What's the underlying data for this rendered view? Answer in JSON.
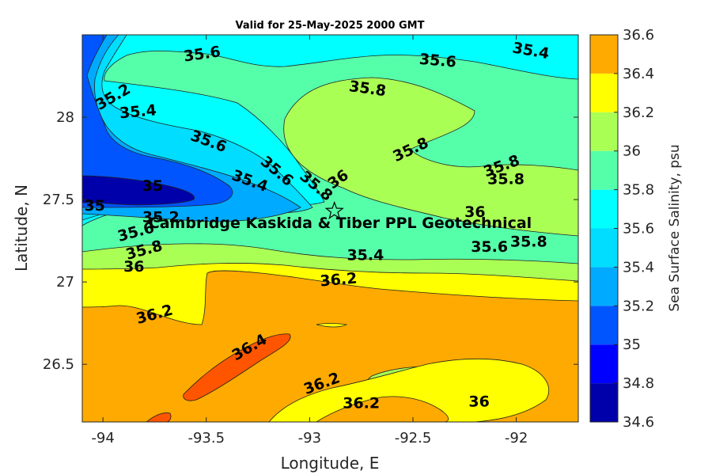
{
  "chart_data": {
    "type": "heatmap",
    "title": "Valid for 25-May-2025 2000 GMT",
    "xlabel": "Longitude, E",
    "ylabel": "Latitude, N",
    "xlim": [
      -94.1,
      -91.7
    ],
    "ylim": [
      26.15,
      28.5
    ],
    "x_ticks": [
      -94,
      -93.5,
      -93,
      -92.5,
      -92
    ],
    "x_tick_labels": [
      "-94",
      "-93.5",
      "-93",
      "-92.5",
      "-92"
    ],
    "y_ticks": [
      26.5,
      27,
      27.5,
      28
    ],
    "y_tick_labels": [
      "26.5",
      "27",
      "27.5",
      "28"
    ],
    "colorbar": {
      "label": "Sea Surface Salinity, psu",
      "levels": [
        34.6,
        34.8,
        35,
        35.2,
        35.4,
        35.6,
        35.8,
        36,
        36.2,
        36.4,
        36.6
      ],
      "tick_labels": [
        "34.6",
        "34.8",
        "35",
        "35.2",
        "35.4",
        "35.6",
        "35.8",
        "36",
        "36.2",
        "36.4",
        "36.6"
      ],
      "colors": [
        "#0000AA",
        "#0000FF",
        "#0055FF",
        "#00AAFF",
        "#00DDFF",
        "#00FFFF",
        "#55FFAA",
        "#AAFF55",
        "#FFFF00",
        "#FFAA00",
        "#FF5500"
      ]
    },
    "site": {
      "name": "Cambridge  Kaskida & Tiber PPL Geotechnical",
      "lon": -92.88,
      "lat": 27.43,
      "marker": "star"
    },
    "contour_labels": [
      {
        "text": "35.6",
        "lon": -93.52,
        "lat": 28.38,
        "rot": -8
      },
      {
        "text": "35.6",
        "lon": -92.38,
        "lat": 28.34,
        "rot": 5
      },
      {
        "text": "35.4",
        "lon": -91.93,
        "lat": 28.4,
        "rot": 10
      },
      {
        "text": "35.2",
        "lon": -93.95,
        "lat": 28.12,
        "rot": -30
      },
      {
        "text": "35.4",
        "lon": -93.83,
        "lat": 28.03,
        "rot": -5
      },
      {
        "text": "35.8",
        "lon": -92.72,
        "lat": 28.17,
        "rot": 8
      },
      {
        "text": "35.6",
        "lon": -93.49,
        "lat": 27.85,
        "rot": 20
      },
      {
        "text": "35.8",
        "lon": -92.51,
        "lat": 27.8,
        "rot": -25
      },
      {
        "text": "35.6",
        "lon": -93.16,
        "lat": 27.67,
        "rot": 40
      },
      {
        "text": "35.8",
        "lon": -92.97,
        "lat": 27.58,
        "rot": 40
      },
      {
        "text": "36",
        "lon": -92.86,
        "lat": 27.62,
        "rot": -35
      },
      {
        "text": "35.4",
        "lon": -93.29,
        "lat": 27.61,
        "rot": 20
      },
      {
        "text": "35.8",
        "lon": -92.07,
        "lat": 27.7,
        "rot": -20
      },
      {
        "text": "35.8",
        "lon": -92.05,
        "lat": 27.62,
        "rot": 0
      },
      {
        "text": "35",
        "lon": -93.76,
        "lat": 27.58,
        "rot": 0
      },
      {
        "text": "35",
        "lon": -94.04,
        "lat": 27.46,
        "rot": 0
      },
      {
        "text": "35.2",
        "lon": -93.72,
        "lat": 27.39,
        "rot": 0
      },
      {
        "text": "35.6",
        "lon": -93.84,
        "lat": 27.3,
        "rot": -15
      },
      {
        "text": "35.8",
        "lon": -93.8,
        "lat": 27.19,
        "rot": -15
      },
      {
        "text": "36",
        "lon": -93.85,
        "lat": 27.09,
        "rot": 0
      },
      {
        "text": "36",
        "lon": -92.2,
        "lat": 27.42,
        "rot": 0
      },
      {
        "text": "35.6",
        "lon": -92.13,
        "lat": 27.21,
        "rot": 0
      },
      {
        "text": "35.8",
        "lon": -91.94,
        "lat": 27.24,
        "rot": 0
      },
      {
        "text": "35.4",
        "lon": -92.73,
        "lat": 27.16,
        "rot": 0
      },
      {
        "text": "36.2",
        "lon": -92.86,
        "lat": 27.01,
        "rot": -5
      },
      {
        "text": "36.2",
        "lon": -93.75,
        "lat": 26.8,
        "rot": -15
      },
      {
        "text": "36.4",
        "lon": -93.29,
        "lat": 26.6,
        "rot": -30
      },
      {
        "text": "36.2",
        "lon": -92.94,
        "lat": 26.38,
        "rot": -20
      },
      {
        "text": "36.2",
        "lon": -92.75,
        "lat": 26.26,
        "rot": 0
      },
      {
        "text": "36",
        "lon": -92.18,
        "lat": 26.27,
        "rot": 0
      }
    ]
  }
}
